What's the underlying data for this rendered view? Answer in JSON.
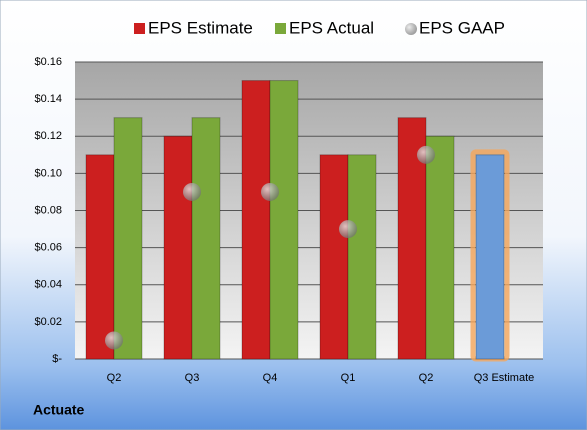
{
  "chart_data": {
    "type": "bar",
    "annotation": "Actuate",
    "categories": [
      "Q2",
      "Q3",
      "Q4",
      "Q1",
      "Q2",
      "Q3 Estimate"
    ],
    "series": [
      {
        "name": "EPS Estimate",
        "color": "#cc1f1f",
        "colors": [
          "#cc1f1f",
          "#cc1f1f",
          "#cc1f1f",
          "#cc1f1f",
          "#cc1f1f",
          "#6b9bd8"
        ],
        "values": [
          0.11,
          0.12,
          0.15,
          0.11,
          0.13,
          0.11
        ]
      },
      {
        "name": "EPS Actual",
        "color": "#7aa83a",
        "values": [
          0.13,
          0.13,
          0.15,
          0.11,
          0.12,
          null
        ]
      },
      {
        "name": "EPS GAAP",
        "color": "#a0a0a0",
        "type": "scatter",
        "values": [
          0.01,
          0.09,
          0.09,
          0.07,
          0.11,
          null
        ]
      }
    ],
    "ylim": [
      0,
      0.16
    ],
    "yticks": [
      {
        "value": 0,
        "label": "$-"
      },
      {
        "value": 0.02,
        "label": "$0.02"
      },
      {
        "value": 0.04,
        "label": "$0.04"
      },
      {
        "value": 0.06,
        "label": "$0.06"
      },
      {
        "value": 0.08,
        "label": "$0.08"
      },
      {
        "value": 0.1,
        "label": "$0.10"
      },
      {
        "value": 0.12,
        "label": "$0.12"
      },
      {
        "value": 0.14,
        "label": "$0.14"
      },
      {
        "value": 0.16,
        "label": "$0.16"
      }
    ],
    "grid": true,
    "legend": "top"
  }
}
